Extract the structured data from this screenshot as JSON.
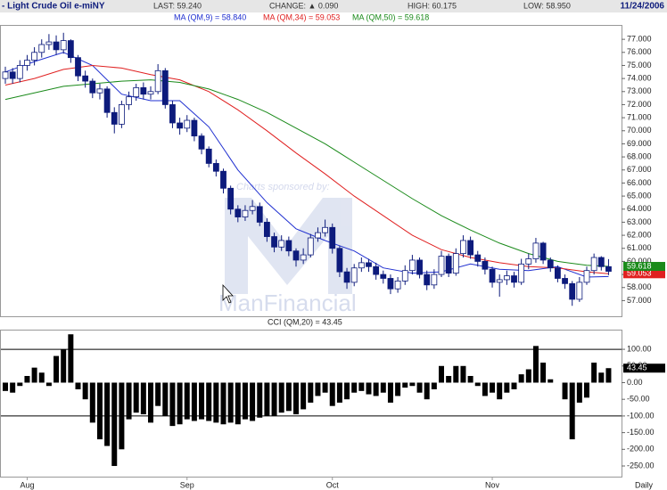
{
  "header": {
    "symbol": "- Light Crude Oil e-miNY",
    "last": "LAST: 59.240",
    "change": "CHANGE: ▲ 0.090",
    "high": "HIGH: 60.175",
    "low": "LOW: 58.950",
    "date": "11/24/2006"
  },
  "watermark": {
    "sponsor": "Charts sponsored by:",
    "brand": "ManFinancial"
  },
  "chart_data": [
    {
      "type": "candlestick",
      "open": [
        74.0,
        74.5,
        74.0,
        75.0,
        75.4,
        76.0,
        76.6,
        76.8,
        76.2,
        76.9,
        75.6,
        74.2,
        73.8,
        72.9,
        73.2,
        71.4,
        70.5,
        72.0,
        72.6,
        73.3,
        72.8,
        73.0,
        74.6,
        72.0,
        70.6,
        70.2,
        70.8,
        69.6,
        68.6,
        67.5,
        66.9,
        65.6,
        64.0,
        63.4,
        63.9,
        64.2,
        63.0,
        61.9,
        61.1,
        61.6,
        60.8,
        60.1,
        60.5,
        61.8,
        62.2,
        62.6,
        61.0,
        59.2,
        58.4,
        59.5,
        59.9,
        59.6,
        59.0,
        58.7,
        57.9,
        58.5,
        59.3,
        60.1,
        59.0,
        58.2,
        59.0,
        60.4,
        59.1,
        60.6,
        61.6,
        60.5,
        60.0,
        59.4,
        58.4,
        58.6,
        58.9,
        58.4,
        59.8,
        60.2,
        61.4,
        60.1,
        59.5,
        58.7,
        58.3,
        57.1,
        58.4,
        59.3,
        60.3,
        59.6
      ],
      "high": [
        74.9,
        74.8,
        75.4,
        75.8,
        76.4,
        77.0,
        77.4,
        77.3,
        77.5,
        77.0,
        75.8,
        74.6,
        74.0,
        73.6,
        73.4,
        71.8,
        72.3,
        73.0,
        73.6,
        73.7,
        73.4,
        75.1,
        74.8,
        72.3,
        71.0,
        71.2,
        71.0,
        69.8,
        68.8,
        67.8,
        67.1,
        65.8,
        64.3,
        64.3,
        64.7,
        64.5,
        63.3,
        62.2,
        62.0,
        61.9,
        61.0,
        61.0,
        62.1,
        62.6,
        63.2,
        62.9,
        61.2,
        59.5,
        59.8,
        60.3,
        60.2,
        59.9,
        59.3,
        59.0,
        58.8,
        59.7,
        60.5,
        60.3,
        59.3,
        59.4,
        60.8,
        60.6,
        61.0,
        62.0,
        61.9,
        60.8,
        60.3,
        59.6,
        59.0,
        59.3,
        59.2,
        60.2,
        60.6,
        61.8,
        61.5,
        60.3,
        59.7,
        59.0,
        58.5,
        58.8,
        59.6,
        60.6,
        60.4,
        60.175
      ],
      "low": [
        73.6,
        73.6,
        73.7,
        74.6,
        75.0,
        75.6,
        76.2,
        75.8,
        75.9,
        75.2,
        73.8,
        73.3,
        72.5,
        72.4,
        71.0,
        69.8,
        70.2,
        71.6,
        72.3,
        72.4,
        72.4,
        72.8,
        71.7,
        70.2,
        69.7,
        69.9,
        69.2,
        68.2,
        67.2,
        66.5,
        65.2,
        63.6,
        63.0,
        63.1,
        63.6,
        62.7,
        61.5,
        60.7,
        60.8,
        60.4,
        59.6,
        59.8,
        60.3,
        61.5,
        61.9,
        60.6,
        58.8,
        57.9,
        58.1,
        59.2,
        59.2,
        58.6,
        58.3,
        57.5,
        57.6,
        58.2,
        59.0,
        58.7,
        57.8,
        57.9,
        58.8,
        58.8,
        58.9,
        60.3,
        60.2,
        59.6,
        59.0,
        58.0,
        57.3,
        58.2,
        58.0,
        58.2,
        59.4,
        59.9,
        59.8,
        59.2,
        58.4,
        57.9,
        56.6,
        56.9,
        58.2,
        59.0,
        59.3,
        58.95
      ],
      "close": [
        74.5,
        74.0,
        75.0,
        75.4,
        76.0,
        76.6,
        76.8,
        76.2,
        76.9,
        75.6,
        74.2,
        73.8,
        72.9,
        73.2,
        71.4,
        70.5,
        72.0,
        72.6,
        73.3,
        72.8,
        73.0,
        74.6,
        72.0,
        70.6,
        70.2,
        70.8,
        69.6,
        68.6,
        67.5,
        66.9,
        65.6,
        64.0,
        63.4,
        63.9,
        64.2,
        63.0,
        61.9,
        61.1,
        61.6,
        60.8,
        60.1,
        60.5,
        61.8,
        62.2,
        62.6,
        61.0,
        59.2,
        58.4,
        59.5,
        59.9,
        59.6,
        59.0,
        58.7,
        57.9,
        58.5,
        59.3,
        60.1,
        59.0,
        58.2,
        59.0,
        60.4,
        59.1,
        60.6,
        61.6,
        60.5,
        60.0,
        59.4,
        58.4,
        58.6,
        58.9,
        58.4,
        59.8,
        60.2,
        61.4,
        60.1,
        59.5,
        58.7,
        58.3,
        57.1,
        58.4,
        59.3,
        60.3,
        59.6,
        59.24
      ],
      "down_color": "#0d1b7c",
      "up_color": "#ffffff",
      "series": [
        {
          "name": "MA (QM,9) = 58.840",
          "color": "#1f2fd0",
          "x": [
            0,
            4,
            8,
            12,
            16,
            20,
            24,
            28,
            32,
            36,
            40,
            44,
            48,
            52,
            56,
            60,
            64,
            68,
            72,
            76,
            80,
            83
          ],
          "values": [
            74.5,
            75.3,
            76.0,
            75.0,
            72.8,
            72.3,
            72.3,
            70.3,
            67.0,
            64.5,
            62.5,
            61.6,
            60.8,
            59.5,
            59.1,
            59.2,
            59.8,
            59.4,
            59.3,
            59.6,
            58.8,
            58.84
          ]
        },
        {
          "name": "MA (QM,34) = 59.053",
          "color": "#e02020",
          "end_label": "59.053",
          "x": [
            0,
            4,
            8,
            12,
            16,
            20,
            24,
            28,
            32,
            36,
            40,
            44,
            48,
            52,
            56,
            60,
            64,
            68,
            72,
            76,
            80,
            83
          ],
          "values": [
            73.5,
            74.0,
            74.7,
            75.0,
            74.8,
            74.3,
            73.9,
            73.0,
            71.6,
            70.0,
            68.3,
            66.7,
            65.0,
            63.5,
            62.0,
            60.9,
            60.3,
            59.9,
            59.6,
            59.5,
            59.2,
            59.053
          ]
        },
        {
          "name": "MA (QM,50) = 59.618",
          "color": "#1a8a1a",
          "end_label": "59.618",
          "x": [
            0,
            4,
            8,
            12,
            16,
            20,
            24,
            28,
            32,
            36,
            40,
            44,
            48,
            52,
            56,
            60,
            64,
            68,
            72,
            76,
            80,
            83
          ],
          "values": [
            72.4,
            72.9,
            73.4,
            73.6,
            73.8,
            73.9,
            73.7,
            73.2,
            72.4,
            71.4,
            70.2,
            69.0,
            67.6,
            66.2,
            64.8,
            63.5,
            62.4,
            61.4,
            60.6,
            60.0,
            59.7,
            59.618
          ]
        }
      ],
      "ylim": [
        55.8,
        78.1
      ],
      "yticks": [
        {
          "value": 57,
          "label": "57.000"
        },
        {
          "value": 58,
          "label": "58.000"
        },
        {
          "value": 59,
          "label": "59.000"
        },
        {
          "value": 60,
          "label": "60.000"
        },
        {
          "value": 61,
          "label": "61.000"
        },
        {
          "value": 62,
          "label": "62.000"
        },
        {
          "value": 63,
          "label": "63.000"
        },
        {
          "value": 64,
          "label": "64.000"
        },
        {
          "value": 65,
          "label": "65.000"
        },
        {
          "value": 66,
          "label": "66.000"
        },
        {
          "value": 67,
          "label": "67.000"
        },
        {
          "value": 68,
          "label": "68.000"
        },
        {
          "value": 69,
          "label": "69.000"
        },
        {
          "value": 70,
          "label": "70.000"
        },
        {
          "value": 71,
          "label": "71.000"
        },
        {
          "value": 72,
          "label": "72.000"
        },
        {
          "value": 73,
          "label": "73.000"
        },
        {
          "value": 74,
          "label": "74.000"
        },
        {
          "value": 75,
          "label": "75.000"
        },
        {
          "value": 76,
          "label": "76.000"
        },
        {
          "value": 77,
          "label": "77.000"
        }
      ]
    },
    {
      "type": "bar",
      "title": "CCI (QM,20) = 43.45",
      "color": "#000000",
      "end_label": "43.45",
      "x_label": "Daily",
      "categories": [
        null,
        null,
        null,
        "Aug",
        null,
        null,
        null,
        null,
        null,
        null,
        null,
        null,
        null,
        null,
        null,
        null,
        null,
        null,
        null,
        null,
        null,
        null,
        null,
        null,
        null,
        "Sep",
        null,
        null,
        null,
        null,
        null,
        null,
        null,
        null,
        null,
        null,
        null,
        null,
        null,
        null,
        null,
        null,
        null,
        null,
        null,
        "Oct",
        null,
        null,
        null,
        null,
        null,
        null,
        null,
        null,
        null,
        null,
        null,
        null,
        null,
        null,
        null,
        null,
        null,
        null,
        null,
        null,
        null,
        "Nov",
        null,
        null,
        null,
        null,
        null,
        null,
        null,
        null,
        null,
        null,
        null,
        null,
        null,
        null,
        null,
        null
      ],
      "values": [
        -25,
        -30,
        -10,
        20,
        45,
        30,
        -10,
        80,
        100,
        145,
        -20,
        -50,
        -120,
        -170,
        -190,
        -250,
        -200,
        -110,
        -90,
        -95,
        -120,
        -70,
        -100,
        -130,
        -125,
        -110,
        -115,
        -110,
        -115,
        -120,
        -125,
        -120,
        -125,
        -110,
        -115,
        -105,
        -100,
        -100,
        -90,
        -85,
        -95,
        -80,
        -60,
        -40,
        -30,
        -70,
        -60,
        -50,
        -30,
        -25,
        -35,
        -40,
        -30,
        -60,
        -40,
        -15,
        -10,
        -30,
        -50,
        -20,
        50,
        20,
        50,
        50,
        20,
        -10,
        -40,
        -30,
        -50,
        -30,
        -20,
        25,
        40,
        110,
        60,
        10,
        0,
        -50,
        -170,
        -60,
        -45,
        60,
        30,
        43.45
      ],
      "hlines": [
        100,
        -100
      ],
      "ylim": [
        -282,
        159
      ],
      "yticks": [
        {
          "value": 100,
          "label": "100.00"
        },
        {
          "value": 50,
          "label": "50.00"
        },
        {
          "value": 0,
          "label": "0.00"
        },
        {
          "value": -50,
          "label": "-50.00"
        },
        {
          "value": -100,
          "label": "-100.00"
        },
        {
          "value": -150,
          "label": "-150.00"
        },
        {
          "value": -200,
          "label": "-200.00"
        },
        {
          "value": -250,
          "label": "-250.00"
        }
      ]
    }
  ]
}
